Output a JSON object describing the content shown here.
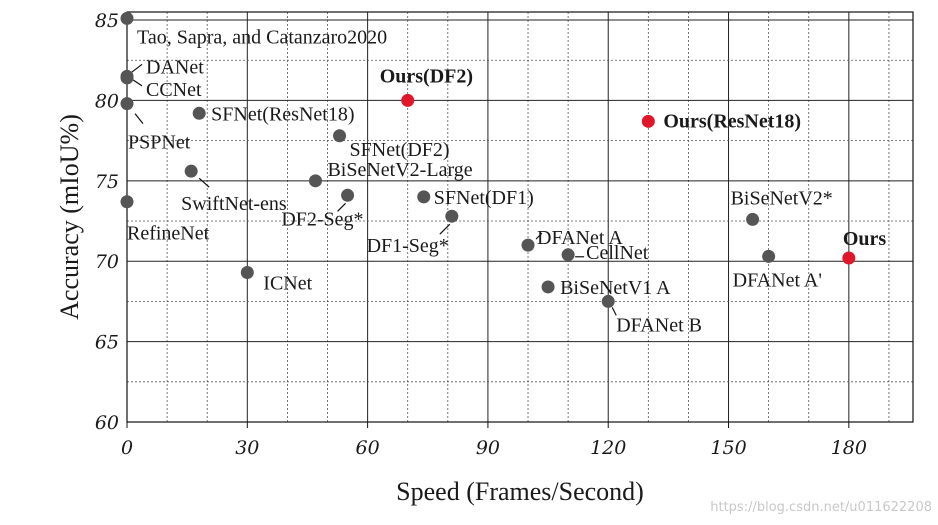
{
  "chart_data": {
    "type": "scatter",
    "xlabel": "Speed (Frames/Second)",
    "ylabel": "Accuracy (mIoU%)",
    "xlim": [
      0,
      196
    ],
    "ylim": [
      60,
      85.5
    ],
    "xticks": [
      0,
      30,
      60,
      90,
      120,
      150,
      180
    ],
    "yticks": [
      60,
      65,
      70,
      75,
      80,
      85
    ],
    "grid": true,
    "colors": {
      "baseline": "#555555",
      "ours": "#e0162b"
    },
    "points": [
      {
        "label": "Tao, Sapra, and Catanzaro2020",
        "x": 0,
        "y": 85.1,
        "ours": false
      },
      {
        "label": "DANet",
        "x": 0,
        "y": 81.5,
        "ours": false
      },
      {
        "label": "CCNet",
        "x": 0,
        "y": 81.4,
        "ours": false
      },
      {
        "label": "PSPNet",
        "x": 0,
        "y": 79.8,
        "ours": false
      },
      {
        "label": "RefineNet",
        "x": 0,
        "y": 73.7,
        "ours": false
      },
      {
        "label": "SFNet(ResNet18)",
        "x": 18,
        "y": 79.2,
        "ours": false
      },
      {
        "label": "SwiftNet-ens",
        "x": 16,
        "y": 75.6,
        "ours": false
      },
      {
        "label": "ICNet",
        "x": 30,
        "y": 69.3,
        "ours": false
      },
      {
        "label": "BiSeNetV2-Large",
        "x": 47,
        "y": 75.0,
        "ours": false
      },
      {
        "label": "SFNet(DF2)",
        "x": 53,
        "y": 77.8,
        "ours": false
      },
      {
        "label": "DF2-Seg*",
        "x": 55,
        "y": 74.1,
        "ours": false
      },
      {
        "label": "Ours(DF2)",
        "x": 70,
        "y": 80.0,
        "ours": true
      },
      {
        "label": "SFNet(DF1)",
        "x": 74,
        "y": 74.0,
        "ours": false
      },
      {
        "label": "DF1-Seg*",
        "x": 81,
        "y": 72.8,
        "ours": false
      },
      {
        "label": "DFANet A",
        "x": 100,
        "y": 71.0,
        "ours": false
      },
      {
        "label": "CellNet",
        "x": 110,
        "y": 70.4,
        "ours": false
      },
      {
        "label": "BiSeNetV1 A",
        "x": 105,
        "y": 68.4,
        "ours": false
      },
      {
        "label": "DFANet B",
        "x": 120,
        "y": 67.5,
        "ours": false
      },
      {
        "label": "Ours(ResNet18)",
        "x": 130,
        "y": 78.7,
        "ours": true
      },
      {
        "label": "BiSeNetV2*",
        "x": 156,
        "y": 72.6,
        "ours": false
      },
      {
        "label": "DFANet A'",
        "x": 160,
        "y": 70.3,
        "ours": false
      },
      {
        "label": "Ours",
        "x": 180,
        "y": 70.2,
        "ours": true
      }
    ]
  },
  "watermark": "https://blog.csdn.net/u011622208"
}
